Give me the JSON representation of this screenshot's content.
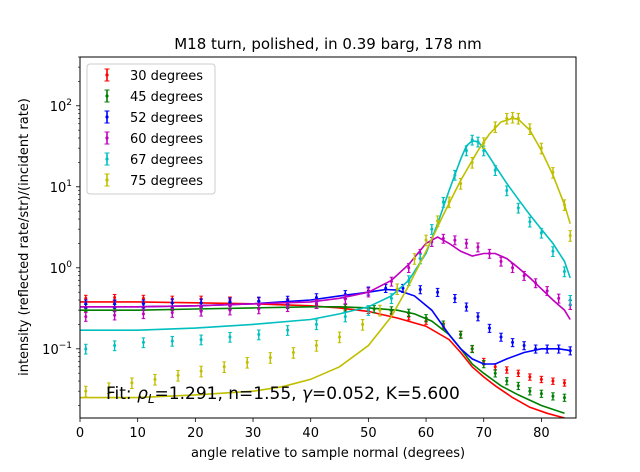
{
  "chart_data": {
    "type": "scatter",
    "title": "M18 turn, polished, in 0.39 barg, 178 nm",
    "xlabel": "angle relative to sample normal (degrees)",
    "ylabel": "intensity (reflected rate/str)/(incident rate)",
    "xlim": [
      0,
      86
    ],
    "ylim": [
      0.014,
      400
    ],
    "yscale": "log",
    "grid": false,
    "legend_position": "top-left",
    "x_ticks": [
      "0",
      "10",
      "20",
      "30",
      "40",
      "50",
      "60",
      "70",
      "80"
    ],
    "y_ticks": [
      {
        "value": 0.1,
        "base": "10",
        "exp": "−1"
      },
      {
        "value": 1,
        "base": "10",
        "exp": "0"
      },
      {
        "value": 10,
        "base": "10",
        "exp": "1"
      },
      {
        "value": 100,
        "base": "10",
        "exp": "2"
      }
    ],
    "annotation": {
      "prefix": "Fit: ",
      "rho_symbol": "ρ",
      "rho_sub": "L",
      "rho_rest": "=1.291, n=1.55, ",
      "gamma_symbol": "γ",
      "tail": "=0.052, K=5.600"
    },
    "series": [
      {
        "name": "30 degrees",
        "color": "#ff0000",
        "data_points": [
          [
            1,
            0.42
          ],
          [
            6,
            0.43
          ],
          [
            11,
            0.42
          ],
          [
            16,
            0.41
          ],
          [
            21,
            0.41
          ],
          [
            26,
            0.4
          ],
          [
            31,
            0.39
          ],
          [
            36,
            0.38
          ],
          [
            41,
            0.36
          ],
          [
            46,
            0.33
          ],
          [
            50,
            0.3
          ],
          [
            54,
            0.27
          ],
          [
            57,
            0.25
          ],
          [
            60,
            0.22
          ],
          [
            63,
            0.19
          ],
          [
            66,
            0.15
          ],
          [
            68,
            0.1
          ],
          [
            70,
            0.07
          ],
          [
            72,
            0.06
          ],
          [
            74,
            0.055
          ],
          [
            76,
            0.05
          ],
          [
            78,
            0.045
          ],
          [
            80,
            0.042
          ],
          [
            82,
            0.04
          ],
          [
            84,
            0.038
          ]
        ],
        "fit_curve": [
          [
            0,
            0.38
          ],
          [
            10,
            0.38
          ],
          [
            20,
            0.37
          ],
          [
            30,
            0.36
          ],
          [
            40,
            0.34
          ],
          [
            45,
            0.32
          ],
          [
            50,
            0.29
          ],
          [
            55,
            0.24
          ],
          [
            60,
            0.19
          ],
          [
            64,
            0.13
          ],
          [
            66,
            0.09
          ],
          [
            68,
            0.06
          ],
          [
            70,
            0.045
          ],
          [
            72,
            0.035
          ],
          [
            75,
            0.025
          ],
          [
            78,
            0.019
          ],
          [
            81,
            0.016
          ],
          [
            84,
            0.014
          ]
        ]
      },
      {
        "name": "45 degrees",
        "color": "#008000",
        "data_points": [
          [
            1,
            0.32
          ],
          [
            6,
            0.32
          ],
          [
            11,
            0.33
          ],
          [
            16,
            0.33
          ],
          [
            21,
            0.33
          ],
          [
            26,
            0.34
          ],
          [
            31,
            0.35
          ],
          [
            36,
            0.35
          ],
          [
            41,
            0.35
          ],
          [
            46,
            0.32
          ],
          [
            51,
            0.31
          ],
          [
            54,
            0.3
          ],
          [
            57,
            0.28
          ],
          [
            60,
            0.24
          ],
          [
            63,
            0.2
          ],
          [
            66,
            0.15
          ],
          [
            68,
            0.1
          ],
          [
            70,
            0.065
          ],
          [
            72,
            0.05
          ],
          [
            74,
            0.04
          ],
          [
            76,
            0.035
          ],
          [
            78,
            0.03
          ],
          [
            80,
            0.028
          ],
          [
            82,
            0.026
          ],
          [
            84,
            0.025
          ]
        ],
        "fit_curve": [
          [
            0,
            0.3
          ],
          [
            10,
            0.3
          ],
          [
            20,
            0.31
          ],
          [
            30,
            0.32
          ],
          [
            40,
            0.33
          ],
          [
            45,
            0.33
          ],
          [
            50,
            0.32
          ],
          [
            55,
            0.3
          ],
          [
            58,
            0.27
          ],
          [
            61,
            0.22
          ],
          [
            64,
            0.15
          ],
          [
            66,
            0.1
          ],
          [
            68,
            0.065
          ],
          [
            70,
            0.05
          ],
          [
            73,
            0.035
          ],
          [
            76,
            0.027
          ],
          [
            80,
            0.02
          ],
          [
            84,
            0.016
          ]
        ]
      },
      {
        "name": "52 degrees",
        "color": "#0000ff",
        "data_points": [
          [
            1,
            0.36
          ],
          [
            6,
            0.36
          ],
          [
            11,
            0.36
          ],
          [
            16,
            0.37
          ],
          [
            21,
            0.37
          ],
          [
            26,
            0.38
          ],
          [
            31,
            0.39
          ],
          [
            36,
            0.4
          ],
          [
            41,
            0.43
          ],
          [
            46,
            0.47
          ],
          [
            50,
            0.52
          ],
          [
            53,
            0.56
          ],
          [
            56,
            0.56
          ],
          [
            59,
            0.54
          ],
          [
            62,
            0.5
          ],
          [
            65,
            0.42
          ],
          [
            67,
            0.33
          ],
          [
            69,
            0.25
          ],
          [
            71,
            0.18
          ],
          [
            73,
            0.14
          ],
          [
            75,
            0.12
          ],
          [
            77,
            0.11
          ],
          [
            79,
            0.1
          ],
          [
            81,
            0.1
          ],
          [
            83,
            0.1
          ],
          [
            85,
            0.095
          ]
        ],
        "fit_curve": [
          [
            0,
            0.33
          ],
          [
            10,
            0.33
          ],
          [
            20,
            0.34
          ],
          [
            30,
            0.36
          ],
          [
            40,
            0.4
          ],
          [
            45,
            0.45
          ],
          [
            50,
            0.5
          ],
          [
            53,
            0.54
          ],
          [
            55,
            0.53
          ],
          [
            58,
            0.45
          ],
          [
            61,
            0.3
          ],
          [
            64,
            0.15
          ],
          [
            66,
            0.1
          ],
          [
            68,
            0.075
          ],
          [
            70,
            0.065
          ],
          [
            72,
            0.065
          ],
          [
            74,
            0.075
          ],
          [
            77,
            0.09
          ],
          [
            80,
            0.1
          ],
          [
            83,
            0.1
          ],
          [
            85,
            0.095
          ]
        ]
      },
      {
        "name": "60 degrees",
        "color": "#bf00bf",
        "data_points": [
          [
            1,
            0.25
          ],
          [
            6,
            0.26
          ],
          [
            11,
            0.27
          ],
          [
            16,
            0.28
          ],
          [
            21,
            0.29
          ],
          [
            26,
            0.3
          ],
          [
            31,
            0.31
          ],
          [
            36,
            0.33
          ],
          [
            41,
            0.36
          ],
          [
            46,
            0.41
          ],
          [
            50,
            0.5
          ],
          [
            54,
            0.68
          ],
          [
            57,
            1.0
          ],
          [
            59,
            1.5
          ],
          [
            61,
            2.1
          ],
          [
            63,
            2.3
          ],
          [
            65,
            2.2
          ],
          [
            67,
            2.0
          ],
          [
            69,
            1.8
          ],
          [
            71,
            1.5
          ],
          [
            73,
            1.2
          ],
          [
            75,
            1.0
          ],
          [
            77,
            0.8
          ],
          [
            79,
            0.65
          ],
          [
            81,
            0.52
          ],
          [
            83,
            0.42
          ],
          [
            85,
            0.35
          ]
        ],
        "fit_curve": [
          [
            0,
            0.33
          ],
          [
            10,
            0.33
          ],
          [
            20,
            0.34
          ],
          [
            30,
            0.36
          ],
          [
            40,
            0.38
          ],
          [
            45,
            0.42
          ],
          [
            50,
            0.5
          ],
          [
            54,
            0.7
          ],
          [
            57,
            1.1
          ],
          [
            60,
            2.0
          ],
          [
            62,
            2.4
          ],
          [
            64,
            2.0
          ],
          [
            66,
            1.6
          ],
          [
            68,
            1.4
          ],
          [
            70,
            1.5
          ],
          [
            72,
            1.5
          ],
          [
            74,
            1.3
          ],
          [
            76,
            1.0
          ],
          [
            78,
            0.75
          ],
          [
            80,
            0.55
          ],
          [
            82,
            0.4
          ],
          [
            84,
            0.3
          ],
          [
            85,
            0.23
          ]
        ]
      },
      {
        "name": "67 degrees",
        "color": "#00bfbf",
        "data_points": [
          [
            1,
            0.1
          ],
          [
            6,
            0.11
          ],
          [
            11,
            0.12
          ],
          [
            16,
            0.125
          ],
          [
            21,
            0.13
          ],
          [
            26,
            0.14
          ],
          [
            31,
            0.15
          ],
          [
            36,
            0.17
          ],
          [
            41,
            0.2
          ],
          [
            46,
            0.25
          ],
          [
            50,
            0.3
          ],
          [
            54,
            0.42
          ],
          [
            57,
            0.7
          ],
          [
            59,
            1.3
          ],
          [
            61,
            3.0
          ],
          [
            63,
            6.5
          ],
          [
            65,
            14
          ],
          [
            67,
            28
          ],
          [
            68,
            38
          ],
          [
            69,
            36
          ],
          [
            70,
            28
          ],
          [
            72,
            16
          ],
          [
            74,
            9
          ],
          [
            76,
            5.5
          ],
          [
            78,
            3.7
          ],
          [
            80,
            2.7
          ],
          [
            82,
            1.6
          ],
          [
            84,
            0.9
          ],
          [
            85,
            0.4
          ]
        ],
        "fit_curve": [
          [
            0,
            0.17
          ],
          [
            10,
            0.17
          ],
          [
            20,
            0.18
          ],
          [
            30,
            0.2
          ],
          [
            40,
            0.23
          ],
          [
            45,
            0.27
          ],
          [
            50,
            0.33
          ],
          [
            54,
            0.45
          ],
          [
            57,
            0.7
          ],
          [
            60,
            1.5
          ],
          [
            62,
            3.5
          ],
          [
            64,
            9
          ],
          [
            66,
            22
          ],
          [
            67,
            32
          ],
          [
            68,
            37
          ],
          [
            69,
            36
          ],
          [
            70,
            30
          ],
          [
            72,
            18
          ],
          [
            74,
            11
          ],
          [
            76,
            7
          ],
          [
            78,
            4.5
          ],
          [
            80,
            3
          ],
          [
            82,
            2
          ],
          [
            84,
            1.2
          ],
          [
            85,
            0.75
          ]
        ]
      },
      {
        "name": "75 degrees",
        "color": "#bfbf00",
        "data_points": [
          [
            1,
            0.03
          ],
          [
            5,
            0.033
          ],
          [
            9,
            0.038
          ],
          [
            13,
            0.042
          ],
          [
            17,
            0.047
          ],
          [
            21,
            0.053
          ],
          [
            25,
            0.06
          ],
          [
            29,
            0.068
          ],
          [
            33,
            0.078
          ],
          [
            37,
            0.09
          ],
          [
            41,
            0.11
          ],
          [
            45,
            0.14
          ],
          [
            49,
            0.2
          ],
          [
            52,
            0.3
          ],
          [
            55,
            0.55
          ],
          [
            58,
            1.3
          ],
          [
            60,
            2.2
          ],
          [
            62,
            3.8
          ],
          [
            64,
            6.5
          ],
          [
            66,
            11
          ],
          [
            68,
            20
          ],
          [
            70,
            35
          ],
          [
            72,
            55
          ],
          [
            74,
            70
          ],
          [
            75,
            72
          ],
          [
            76,
            70
          ],
          [
            78,
            52
          ],
          [
            80,
            30
          ],
          [
            82,
            15
          ],
          [
            84,
            6
          ],
          [
            85,
            2.5
          ]
        ],
        "fit_curve": [
          [
            0,
            0.025
          ],
          [
            10,
            0.025
          ],
          [
            20,
            0.027
          ],
          [
            30,
            0.03
          ],
          [
            35,
            0.034
          ],
          [
            40,
            0.042
          ],
          [
            45,
            0.06
          ],
          [
            50,
            0.11
          ],
          [
            54,
            0.25
          ],
          [
            57,
            0.6
          ],
          [
            60,
            1.6
          ],
          [
            63,
            4.5
          ],
          [
            66,
            12
          ],
          [
            69,
            28
          ],
          [
            71,
            45
          ],
          [
            73,
            63
          ],
          [
            75,
            70
          ],
          [
            76,
            68
          ],
          [
            78,
            50
          ],
          [
            80,
            28
          ],
          [
            82,
            14
          ],
          [
            84,
            6
          ],
          [
            85,
            3.5
          ]
        ]
      }
    ]
  }
}
